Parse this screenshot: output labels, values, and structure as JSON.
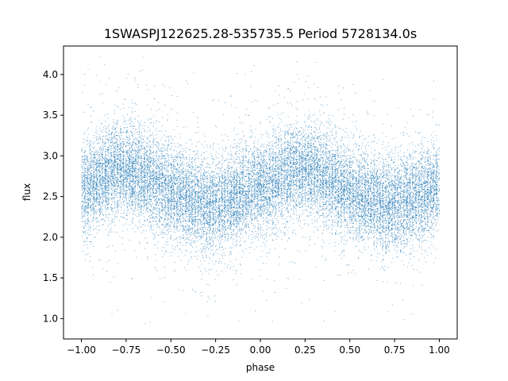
{
  "chart_data": {
    "type": "scatter",
    "title": "1SWASPJ122625.28-535735.5 Period 5728134.0s",
    "xlabel": "phase",
    "ylabel": "flux",
    "xlim": [
      -1.1,
      1.1
    ],
    "ylim": [
      0.75,
      4.35
    ],
    "xticks": [
      -1.0,
      -0.75,
      -0.5,
      -0.25,
      0.0,
      0.25,
      0.5,
      0.75,
      1.0
    ],
    "xtick_labels": [
      "−1.00",
      "−0.75",
      "−0.50",
      "−0.25",
      "0.00",
      "0.25",
      "0.50",
      "0.75",
      "1.00"
    ],
    "yticks": [
      1.0,
      1.5,
      2.0,
      2.5,
      3.0,
      3.5,
      4.0
    ],
    "ytick_labels": [
      "1.0",
      "1.5",
      "2.0",
      "2.5",
      "3.0",
      "3.5",
      "4.0"
    ],
    "grid": false,
    "legend": "none",
    "marker_color": "#1f77b4",
    "series": [
      {
        "x_range": [
          -1.0,
          1.0
        ],
        "repeats_every": 1.0,
        "n_points_approx": 20000,
        "mean_flux_profile": {
          "phase": [
            0.0,
            0.05,
            0.1,
            0.15,
            0.2,
            0.25,
            0.3,
            0.35,
            0.4,
            0.45,
            0.5,
            0.55,
            0.6,
            0.65,
            0.7,
            0.75,
            0.8,
            0.85,
            0.9,
            0.95,
            1.0
          ],
          "flux": [
            2.62,
            2.64,
            2.72,
            2.8,
            2.83,
            2.84,
            2.8,
            2.74,
            2.68,
            2.62,
            2.56,
            2.52,
            2.48,
            2.42,
            2.38,
            2.4,
            2.44,
            2.48,
            2.52,
            2.58,
            2.62
          ]
        },
        "typical_scatter": 0.28,
        "flux_min": 0.9,
        "flux_max": 4.25
      }
    ]
  }
}
